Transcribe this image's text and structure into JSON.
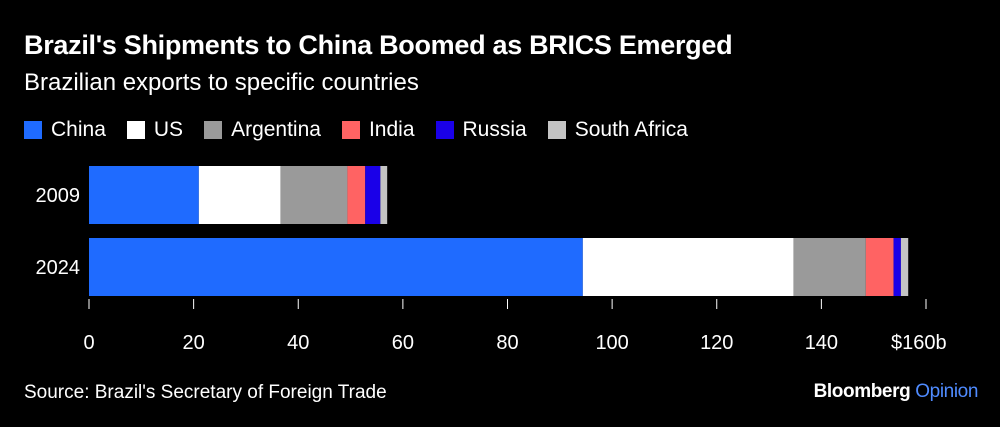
{
  "header": {
    "title": "Brazil's Shipments to China Boomed as BRICS Emerged",
    "subtitle": "Brazilian exports to specific countries"
  },
  "footer": {
    "source": "Source: Brazil's Secretary of Foreign Trade",
    "brand_main": "Bloomberg",
    "brand_accent": "Opinion"
  },
  "chart_data": {
    "type": "bar",
    "orientation": "horizontal",
    "stacked": true,
    "title": "Brazil's Shipments to China Boomed as BRICS Emerged",
    "subtitle": "Brazilian exports to specific countries",
    "categories": [
      "2009",
      "2024"
    ],
    "series": [
      {
        "name": "China",
        "color": "#1f6bff",
        "values": [
          21.0,
          94.4
        ]
      },
      {
        "name": "US",
        "color": "#ffffff",
        "values": [
          15.6,
          40.3
        ]
      },
      {
        "name": "Argentina",
        "color": "#9a9a9a",
        "values": [
          12.8,
          13.8
        ]
      },
      {
        "name": "India",
        "color": "#ff6363",
        "values": [
          3.4,
          5.3
        ]
      },
      {
        "name": "Russia",
        "color": "#1a00e8",
        "values": [
          2.9,
          1.4
        ]
      },
      {
        "name": "South Africa",
        "color": "#c4c4c4",
        "values": [
          1.3,
          1.4
        ]
      }
    ],
    "xlabel": "",
    "ylabel": "",
    "xlim": [
      0,
      160
    ],
    "xticks": [
      0,
      20,
      40,
      60,
      80,
      100,
      120,
      140,
      160
    ],
    "xtick_labels": [
      "0",
      "20",
      "40",
      "60",
      "80",
      "100",
      "120",
      "140",
      "$160b"
    ],
    "legend_position": "top-left"
  }
}
